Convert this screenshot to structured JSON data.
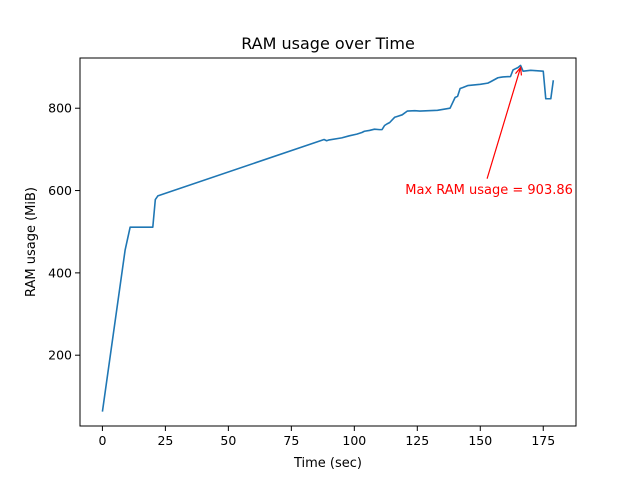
{
  "chart_data": {
    "type": "line",
    "title": "RAM usage over Time",
    "xlabel": "Time (sec)",
    "ylabel": "RAM usage (MiB)",
    "xlim": [
      -8.9,
      188
    ],
    "ylim": [
      28,
      922
    ],
    "xticks": [
      0,
      25,
      50,
      75,
      100,
      125,
      150,
      175
    ],
    "yticks": [
      200,
      400,
      600,
      800
    ],
    "grid": false,
    "series": [
      {
        "color": "#1f77b4",
        "x": [
          0,
          9,
          11,
          19,
          20,
          21,
          22,
          88,
          89,
          90,
          95,
          98,
          101,
          103,
          104,
          106,
          108,
          110,
          111,
          112,
          113,
          114,
          116,
          117,
          119,
          121,
          124,
          126,
          133,
          138,
          140,
          141,
          142,
          143,
          145,
          150,
          153,
          154,
          157,
          158,
          159,
          162,
          163,
          164,
          165,
          166,
          167,
          170,
          175,
          176,
          178,
          179
        ],
        "y": [
          63,
          455,
          511,
          511,
          511,
          578,
          587,
          724,
          721,
          723,
          728,
          733,
          737,
          741,
          744,
          746,
          749,
          748,
          748,
          758,
          762,
          765,
          778,
          780,
          784,
          793,
          794,
          793,
          795,
          800,
          826,
          829,
          848,
          850,
          855,
          858,
          861,
          864,
          874,
          875,
          876,
          877,
          893,
          896,
          899,
          904,
          890,
          892,
          890,
          823,
          823,
          868
        ]
      }
    ],
    "annotation": {
      "text": "Max RAM usage = 903.86",
      "color": "#ff0000",
      "point": [
        166,
        903.86
      ],
      "text_pos": [
        153.5,
        602
      ]
    }
  }
}
